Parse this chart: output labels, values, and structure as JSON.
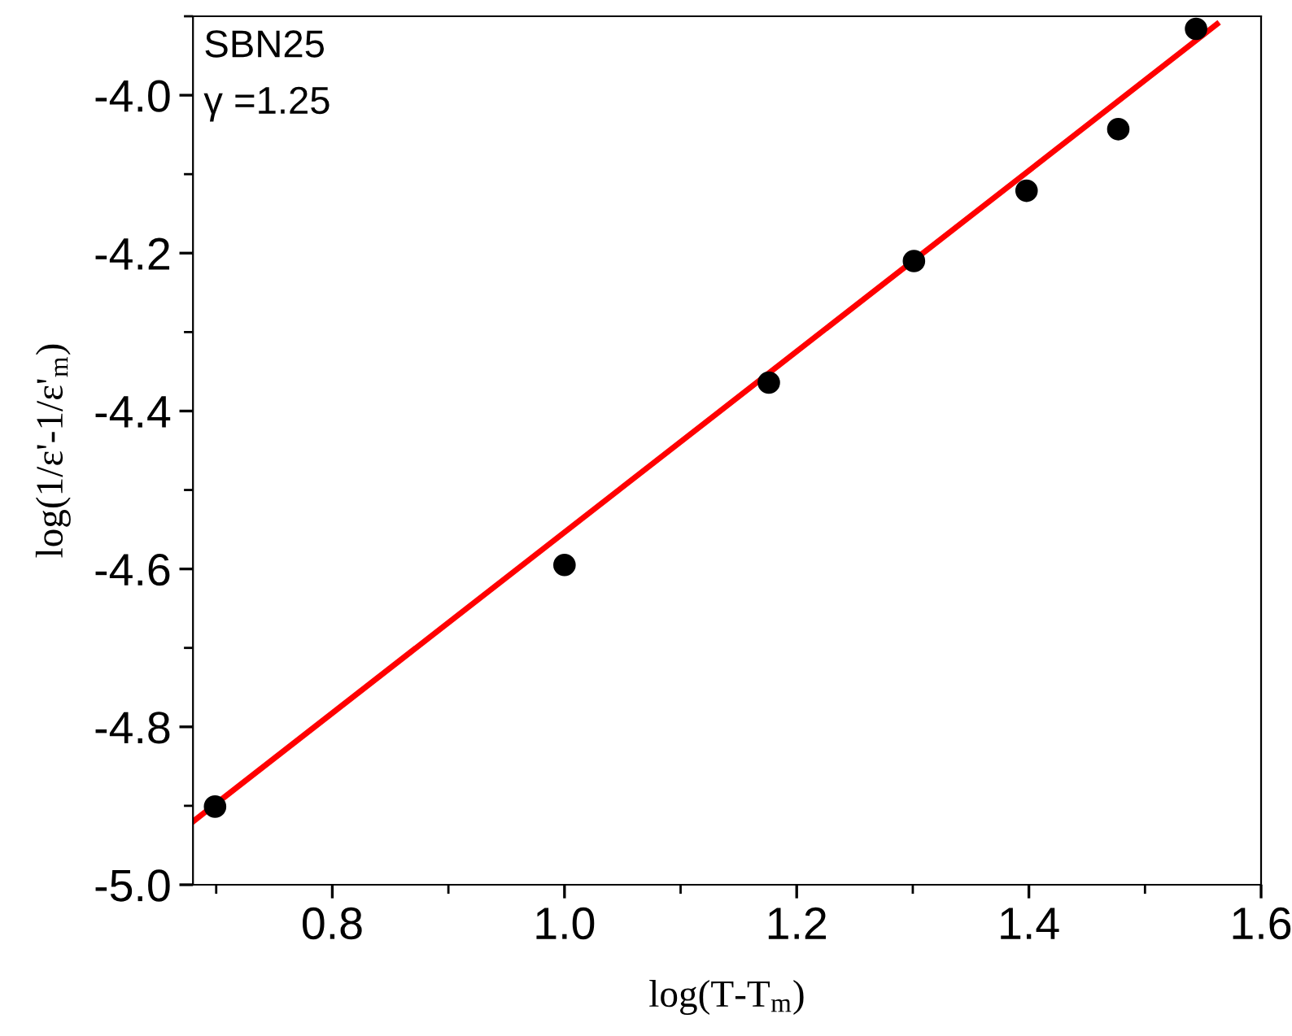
{
  "chart_data": {
    "type": "scatter",
    "xlabel": "log(T-T$_{m}$)",
    "ylabel": "log(1/ε'-1/ε'$_{m}$)",
    "annotations": [
      "SBN25",
      "γ =1.25"
    ],
    "x": [
      0.699,
      1.0,
      1.176,
      1.301,
      1.398,
      1.477,
      1.544
    ],
    "series": [
      {
        "color": "#000000",
        "marker": "circle",
        "values": [
          -4.901,
          -4.595,
          -4.364,
          -4.21,
          -4.121,
          -4.043,
          -3.916
        ]
      },
      {
        "type": "line",
        "color": "#ff0000",
        "x": [
          0.68,
          1.562
        ],
        "values": [
          -4.92,
          -3.91
        ]
      }
    ],
    "xlim": [
      0.68,
      1.6
    ],
    "ylim": [
      -5.0,
      -3.9
    ],
    "xticks": [
      0.8,
      {
        "value": 1.0,
        "label": "1.0"
      },
      1.2,
      1.4,
      1.6
    ],
    "yticks": [
      {
        "value": -5.0,
        "label": "-5.0"
      },
      -4.8,
      -4.6,
      -4.4,
      -4.2,
      {
        "value": -4.0,
        "label": "-4.0"
      }
    ],
    "grid": false,
    "legend": false
  }
}
